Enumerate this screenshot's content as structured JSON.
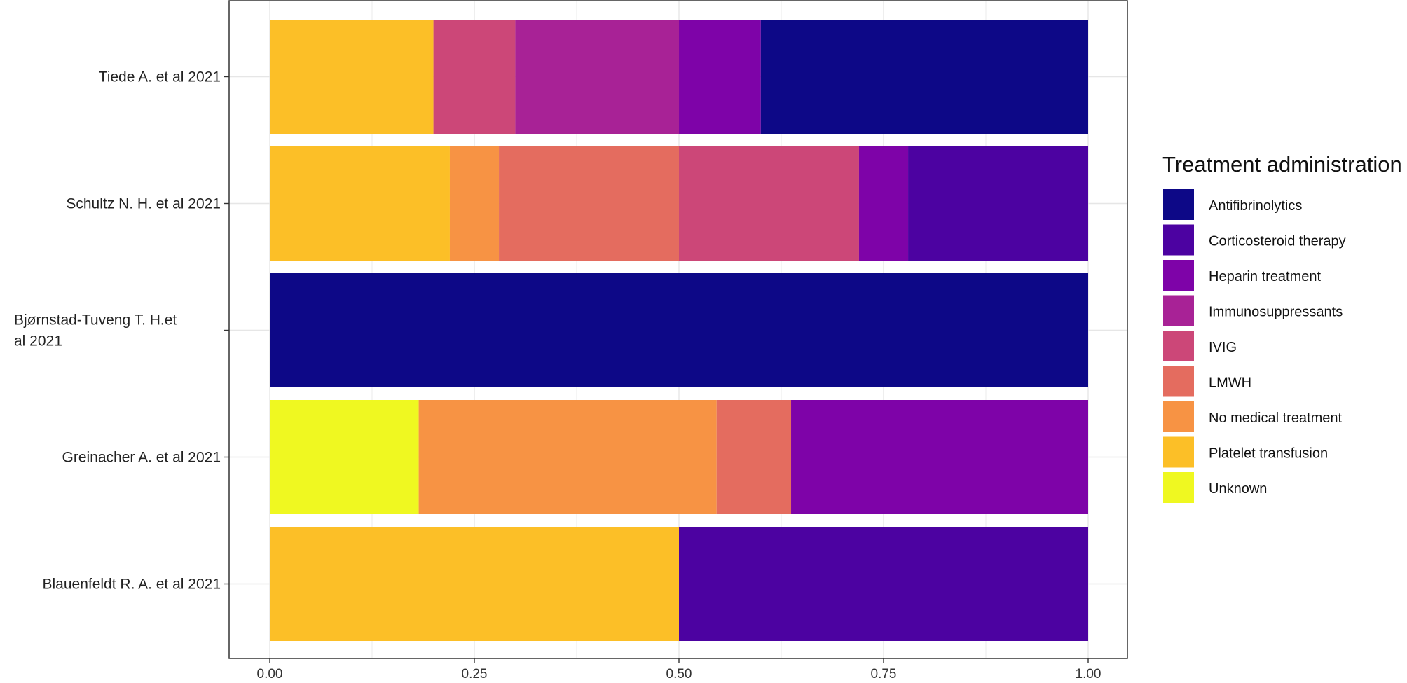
{
  "chart_data": {
    "type": "bar",
    "orientation": "horizontal",
    "stacked": true,
    "xlim": [
      0,
      1
    ],
    "x_ticks": [
      "0.00",
      "0.25",
      "0.50",
      "0.75",
      "1.00"
    ],
    "xlabel": "",
    "ylabel": "",
    "grid": true,
    "legend_position": "right",
    "categories": [
      {
        "lines": [
          "Tiede A. et al 2021"
        ]
      },
      {
        "lines": [
          "Schultz N. H. et al 2021"
        ]
      },
      {
        "lines": [
          "Bjørnstad-Tuveng T. H.et",
          "al 2021"
        ]
      },
      {
        "lines": [
          "Greinacher A. et al 2021"
        ]
      },
      {
        "lines": [
          "Blauenfeldt R. A. et al 2021"
        ]
      }
    ],
    "legend_title": "Treatment administration",
    "series": [
      {
        "name": "Platelet transfusion",
        "color": "#FCBF27",
        "values": [
          0.2,
          0.22,
          0,
          0,
          0.5
        ]
      },
      {
        "name": "No medical treatment",
        "color": "#F79344",
        "values": [
          0,
          0.06,
          0,
          0.364,
          0
        ]
      },
      {
        "name": "LMWH",
        "color": "#E46C5F",
        "values": [
          0,
          0.22,
          0,
          0.091,
          0
        ]
      },
      {
        "name": "IVIG",
        "color": "#CC4778",
        "values": [
          0.1,
          0.22,
          0,
          0,
          0
        ]
      },
      {
        "name": "Immunosuppressants",
        "color": "#A82296",
        "values": [
          0.2,
          0,
          0,
          0,
          0
        ]
      },
      {
        "name": "Heparin treatment",
        "color": "#7E03A8",
        "values": [
          0.1,
          0.06,
          0,
          0.363,
          0
        ]
      },
      {
        "name": "Corticosteroid therapy",
        "color": "#4C02A1",
        "values": [
          0,
          0.22,
          0,
          0,
          0.5
        ]
      },
      {
        "name": "Antifibrinolytics",
        "color": "#0D0887",
        "values": [
          0.4,
          0,
          1.0,
          0,
          0
        ]
      },
      {
        "name": "Unknown",
        "color": "#EFF821",
        "values": [
          0,
          0,
          0,
          0.182,
          0
        ]
      }
    ],
    "stack_order_left_to_right": [
      "Unknown",
      "Platelet transfusion",
      "No medical treatment",
      "LMWH",
      "IVIG",
      "Immunosuppressants",
      "Heparin treatment",
      "Corticosteroid therapy",
      "Antifibrinolytics"
    ],
    "legend_order": [
      "Antifibrinolytics",
      "Corticosteroid therapy",
      "Heparin treatment",
      "Immunosuppressants",
      "IVIG",
      "LMWH",
      "No medical treatment",
      "Platelet transfusion",
      "Unknown"
    ]
  }
}
